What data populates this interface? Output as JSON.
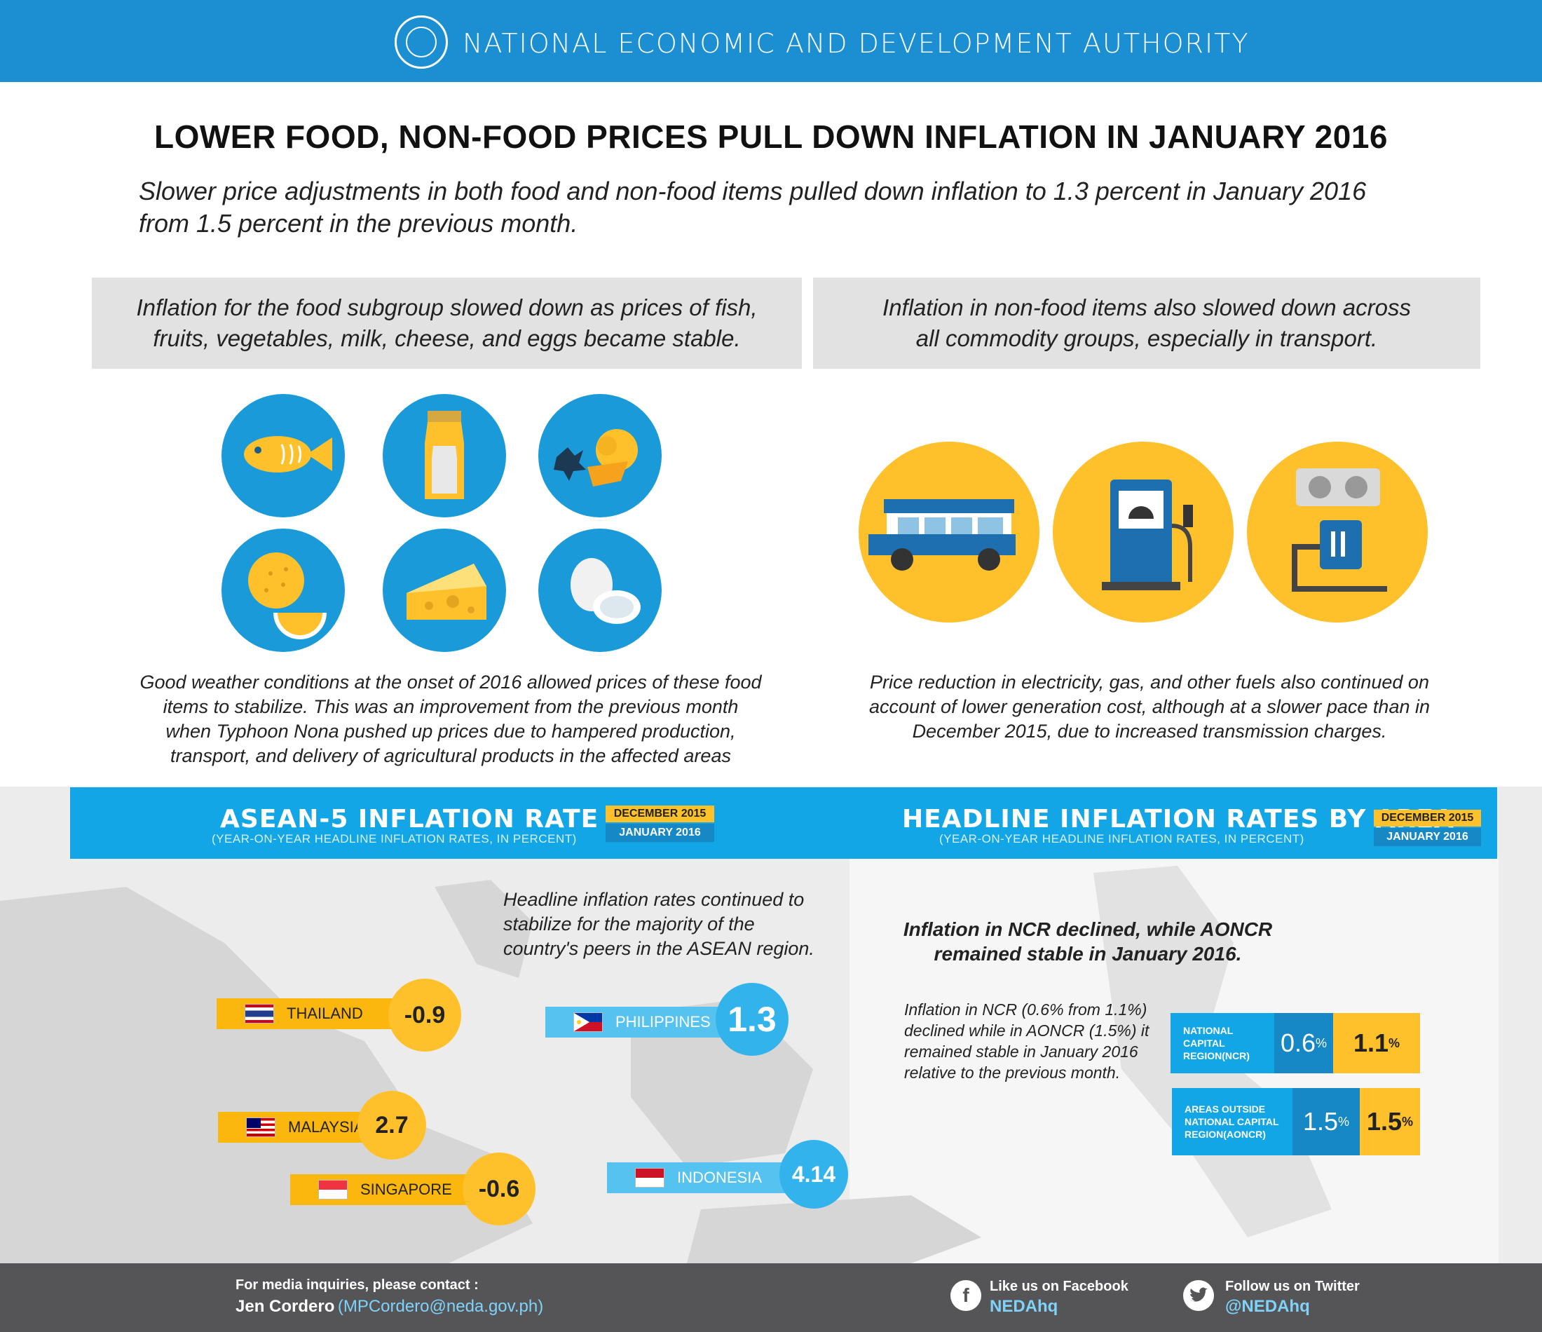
{
  "header": {
    "org_name": "NATIONAL ECONOMIC AND DEVELOPMENT AUTHORITY",
    "logo_icon": "neda-seal-icon"
  },
  "title": "LOWER FOOD, NON-FOOD PRICES PULL DOWN INFLATION IN JANUARY 2016",
  "subtitle_line1": "Slower price adjustments in both food and non-food items pulled down inflation to 1.3 percent in January 2016",
  "subtitle_line2": "from 1.5 percent in the previous month.",
  "food": {
    "box_line1": "Inflation for the food subgroup slowed down as prices of fish,",
    "box_line2": "fruits, vegetables, milk, cheese, and eggs became stable.",
    "icons": [
      "fish-icon",
      "milk-icon",
      "vegetables-icon",
      "fruit-icon",
      "cheese-icon",
      "eggs-icon"
    ],
    "para_lines": [
      "Good weather conditions at the onset of 2016 allowed prices of these food",
      "items to stabilize. This was an improvement from the previous month",
      "when Typhoon Nona pushed up prices due to hampered production,",
      "transport, and delivery of agricultural products in the affected areas"
    ]
  },
  "nonfood": {
    "box_line1": "Inflation in non-food items also slowed down across",
    "box_line2": "all commodity groups, especially in transport.",
    "icons": [
      "jeepney-icon",
      "fuel-pump-icon",
      "electric-plug-icon"
    ],
    "para_lines": [
      "Price reduction in electricity, gas, and other fuels also continued on",
      "account of lower generation cost, although at a slower pace than in",
      "December 2015, due to increased transmission charges."
    ]
  },
  "asean": {
    "title": "ASEAN-5 INFLATION RATE",
    "subtitle": "(YEAR-ON-YEAR HEADLINE INFLATION RATES, IN PERCENT)",
    "legend_dec": "DECEMBER 2015",
    "legend_jan": "JANUARY 2016",
    "note_lines": [
      "Headline inflation rates continued to",
      "stabilize for the majority of the",
      "country's peers in the ASEAN region."
    ],
    "countries": {
      "thailand": {
        "name": "THAILAND",
        "value": "-0.9"
      },
      "philippines": {
        "name": "PHILIPPINES",
        "value": "1.3"
      },
      "malaysia": {
        "name": "MALAYSIA",
        "value": "2.7"
      },
      "singapore": {
        "name": "SINGAPORE",
        "value": "-0.6"
      },
      "indonesia": {
        "name": "INDONESIA",
        "value": "4.14"
      }
    }
  },
  "area": {
    "title": "HEADLINE INFLATION RATES BY AREA",
    "subtitle": "(YEAR-ON-YEAR HEADLINE INFLATION RATES, IN PERCENT)",
    "legend_dec": "DECEMBER 2015",
    "legend_jan": "JANUARY 2016",
    "heading_line1": "Inflation in NCR declined, while AONCR",
    "heading_line2": "remained stable in January 2016.",
    "note_lines": [
      "Inflation in NCR (0.6% from 1.1%)",
      "declined while in AONCR (1.5%) it",
      "remained stable in January 2016",
      "relative to the previous month."
    ],
    "ncr": {
      "label_lines": [
        "NATIONAL",
        "CAPITAL",
        "REGION(NCR)"
      ],
      "jan": "0.6",
      "dec": "1.1",
      "unit": "%"
    },
    "aoncr": {
      "label_lines": [
        "AREAS OUTSIDE",
        "NATIONAL CAPITAL",
        "REGION(AONCR)"
      ],
      "jan": "1.5",
      "dec": "1.5",
      "unit": "%"
    }
  },
  "footer": {
    "media_label": "For media inquiries, please contact :",
    "contact_name": "Jen Cordero",
    "contact_email": "(MPCordero@neda.gov.ph)",
    "facebook_label": "Like us on Facebook",
    "facebook_handle": "NEDAhq",
    "twitter_label": "Follow us on Twitter",
    "twitter_handle": "@NEDAhq"
  },
  "colors": {
    "header_blue": "#1b8fd1",
    "band_blue": "#12a6e6",
    "yellow": "#fec12c",
    "dark_blue": "#1688c6",
    "footer_gray": "#555456"
  }
}
